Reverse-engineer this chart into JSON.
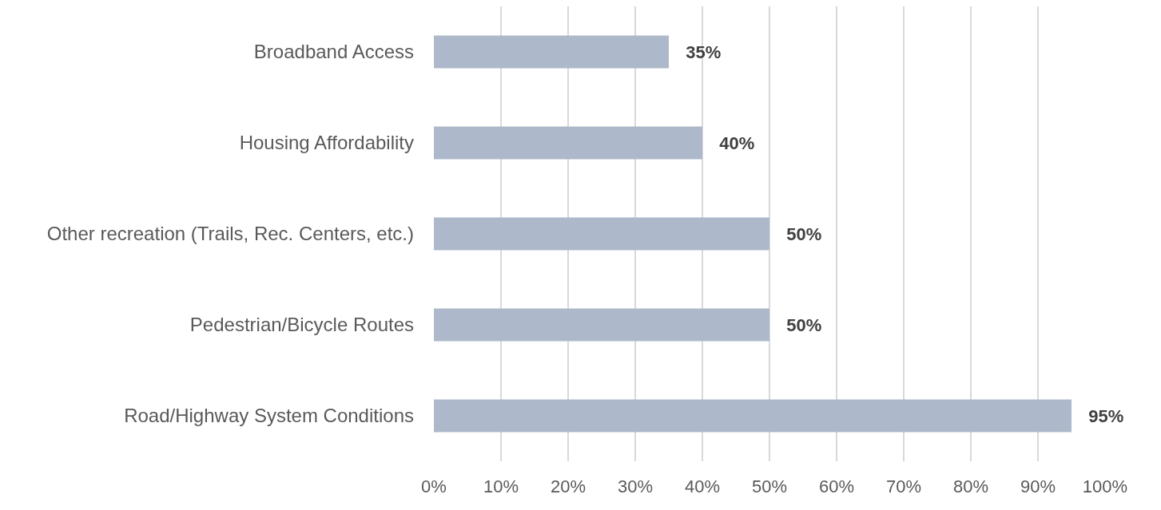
{
  "chart_data": {
    "type": "bar",
    "orientation": "horizontal",
    "categories": [
      "Broadband Access",
      "Housing Affordability",
      "Other recreation (Trails, Rec. Centers, etc.)",
      "Pedestrian/Bicycle Routes",
      "Road/Highway System Conditions"
    ],
    "values": [
      35,
      40,
      50,
      50,
      95
    ],
    "color": "#adb9ca",
    "value_labels": [
      "35%",
      "40%",
      "50%",
      "50%",
      "95%"
    ],
    "xlim": [
      0,
      100
    ],
    "xticks": [
      {
        "value": 0,
        "label": "0%"
      },
      {
        "value": 10,
        "label": "10%"
      },
      {
        "value": 20,
        "label": "20%"
      },
      {
        "value": 30,
        "label": "30%"
      },
      {
        "value": 40,
        "label": "40%"
      },
      {
        "value": 50,
        "label": "50%"
      },
      {
        "value": 60,
        "label": "60%"
      },
      {
        "value": 70,
        "label": "70%"
      },
      {
        "value": 80,
        "label": "80%"
      },
      {
        "value": 90,
        "label": "90%"
      },
      {
        "value": 100,
        "label": "100%"
      }
    ],
    "grid": "x"
  }
}
